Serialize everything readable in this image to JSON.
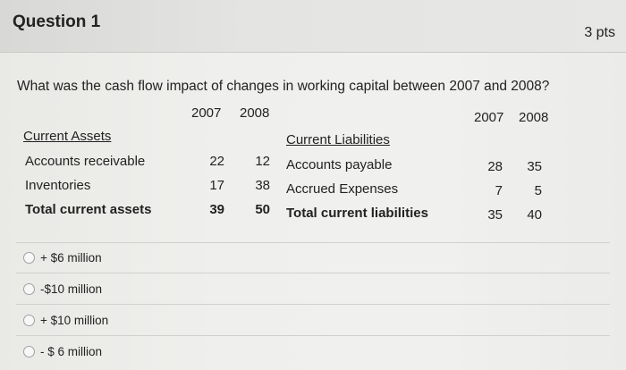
{
  "header": {
    "title": "Question 1",
    "points": "3 pts"
  },
  "question": {
    "text": "What was the cash flow impact of changes in working capital between 2007 and 2008?"
  },
  "years": {
    "left_2007": "2007",
    "left_2008": "2008",
    "right_2007": "2007",
    "right_2008": "2008"
  },
  "assets": {
    "heading": "Current Assets",
    "rows": [
      {
        "label": "Accounts receivable",
        "y2007": "22",
        "y2008": "12"
      },
      {
        "label": "Inventories",
        "y2007": "17",
        "y2008": "38"
      },
      {
        "label": "Total current assets",
        "y2007": "39",
        "y2008": "50"
      }
    ]
  },
  "liabilities": {
    "heading": "Current Liabilities",
    "rows": [
      {
        "label": "Accounts payable",
        "y2007": "28",
        "y2008": "35"
      },
      {
        "label": "Accrued Expenses",
        "y2007": "7",
        "y2008": "5"
      },
      {
        "label": "Total current liabilities",
        "y2007": "35",
        "y2008": "40"
      }
    ]
  },
  "options": [
    {
      "label": "+ $6 million"
    },
    {
      "label": "-$10 million"
    },
    {
      "label": "+ $10 million"
    },
    {
      "label": "- $ 6 million"
    }
  ]
}
